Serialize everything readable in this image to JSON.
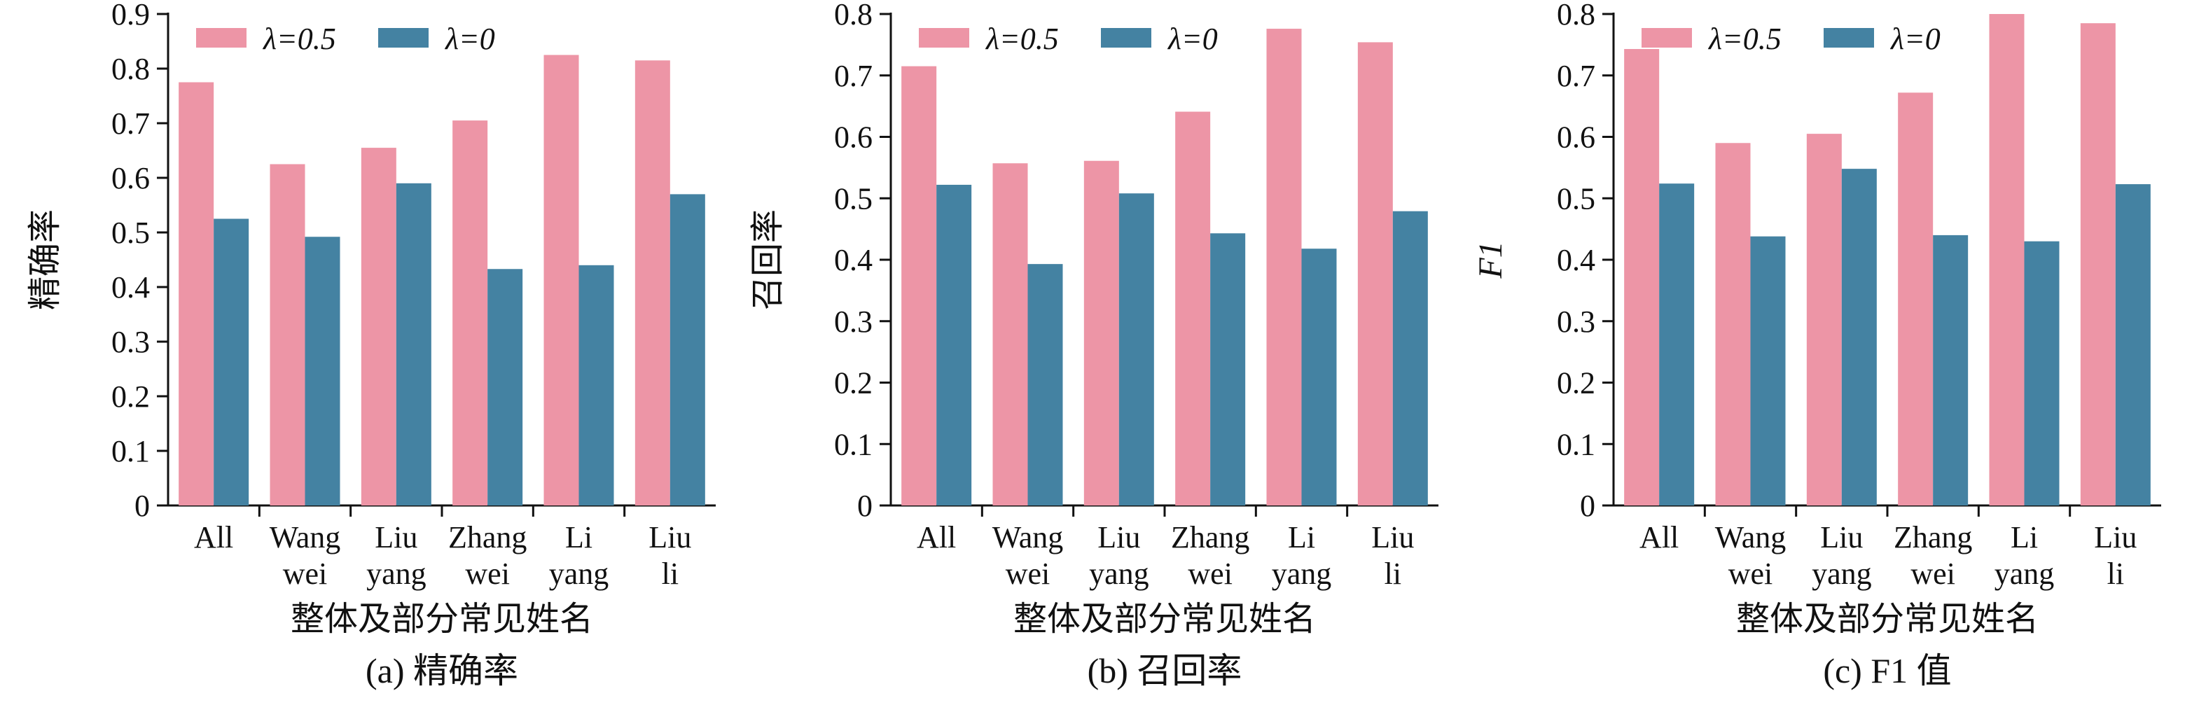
{
  "colors": {
    "lambda_05": "#ED95A6",
    "lambda_0": "#4482A2",
    "axis": "#111111"
  },
  "chart_data": [
    {
      "type": "bar",
      "panel": "(a)",
      "categories": [
        [
          "All"
        ],
        [
          "Wang",
          "wei"
        ],
        [
          "Liu",
          "yang"
        ],
        [
          "Zhang",
          "wei"
        ],
        [
          "Li",
          "yang"
        ],
        [
          "Liu",
          "li"
        ]
      ],
      "series": [
        {
          "name": "λ=0.5",
          "values": [
            0.775,
            0.625,
            0.655,
            0.705,
            0.825,
            0.815
          ]
        },
        {
          "name": "λ=0",
          "values": [
            0.525,
            0.492,
            0.59,
            0.433,
            0.44,
            0.57
          ]
        }
      ],
      "ylabel": "精确率",
      "xlabel": "整体及部分常见姓名",
      "caption": "(a) 精确率",
      "ylim": [
        0,
        0.9
      ],
      "yticks": [
        "0",
        "0.1",
        "0.2",
        "0.3",
        "0.4",
        "0.5",
        "0.6",
        "0.7",
        "0.8",
        "0.9"
      ],
      "legend_position": "top",
      "grid": false
    },
    {
      "type": "bar",
      "panel": "(b)",
      "categories": [
        [
          "All"
        ],
        [
          "Wang",
          "wei"
        ],
        [
          "Liu",
          "yang"
        ],
        [
          "Zhang",
          "wei"
        ],
        [
          "Li",
          "yang"
        ],
        [
          "Liu",
          "li"
        ]
      ],
      "series": [
        {
          "name": "λ=0.5",
          "values": [
            0.715,
            0.557,
            0.561,
            0.641,
            0.776,
            0.754
          ]
        },
        {
          "name": "λ=0",
          "values": [
            0.522,
            0.393,
            0.508,
            0.443,
            0.418,
            0.479
          ]
        }
      ],
      "ylabel": "召回率",
      "xlabel": "整体及部分常见姓名",
      "caption": "(b) 召回率",
      "ylim": [
        0,
        0.8
      ],
      "yticks": [
        "0",
        "0.1",
        "0.2",
        "0.3",
        "0.4",
        "0.5",
        "0.6",
        "0.7",
        "0.8"
      ],
      "legend_position": "top",
      "grid": false
    },
    {
      "type": "bar",
      "panel": "(c)",
      "categories": [
        [
          "All"
        ],
        [
          "Wang",
          "wei"
        ],
        [
          "Liu",
          "yang"
        ],
        [
          "Zhang",
          "wei"
        ],
        [
          "Li",
          "yang"
        ],
        [
          "Liu",
          "li"
        ]
      ],
      "series": [
        {
          "name": "λ=0.5",
          "values": [
            0.743,
            0.59,
            0.605,
            0.672,
            0.8,
            0.785
          ]
        },
        {
          "name": "λ=0",
          "values": [
            0.524,
            0.438,
            0.548,
            0.44,
            0.43,
            0.523
          ]
        }
      ],
      "ylabel": "F1",
      "xlabel": "整体及部分常见姓名",
      "caption": "(c) F1 值",
      "ylim": [
        0,
        0.8
      ],
      "yticks": [
        "0",
        "0.1",
        "0.2",
        "0.3",
        "0.4",
        "0.5",
        "0.6",
        "0.7",
        "0.8"
      ],
      "legend_position": "top",
      "grid": false
    }
  ]
}
